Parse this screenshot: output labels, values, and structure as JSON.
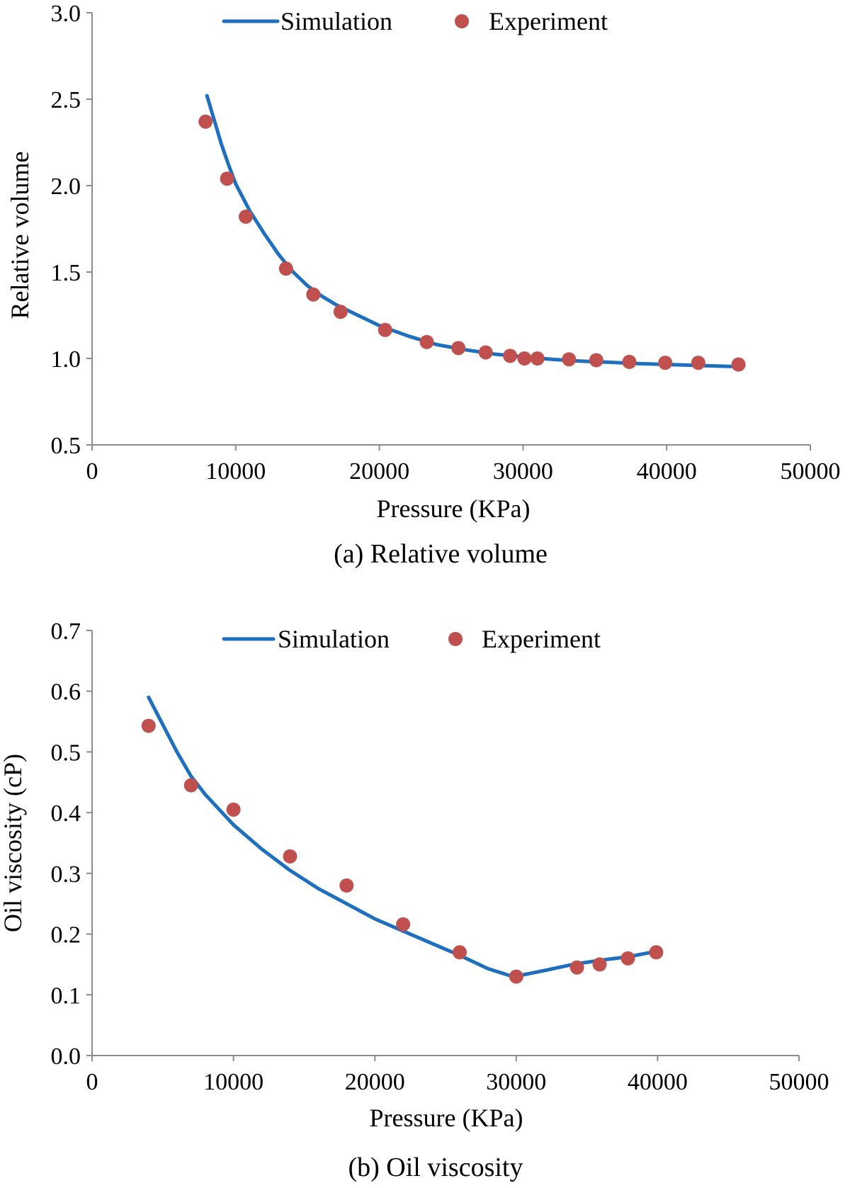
{
  "colors": {
    "simulation": "#1f6fbf",
    "experiment": "#c0504d"
  },
  "chart_data": [
    {
      "type": "line",
      "caption": "(a) Relative volume",
      "xlabel": "Pressure (KPa)",
      "ylabel": "Relative volume",
      "xlim": [
        0,
        50000
      ],
      "ylim": [
        0.5,
        3.0
      ],
      "xticks": [
        0,
        10000,
        20000,
        30000,
        40000,
        50000
      ],
      "yticks": [
        0.5,
        1.0,
        1.5,
        2.0,
        2.5,
        3.0
      ],
      "ytick_decimals": 1,
      "grid": false,
      "legend_position": "top",
      "series": [
        {
          "name": "Simulation",
          "style": "line",
          "x": [
            8000,
            8500,
            9000,
            9500,
            10000,
            11000,
            12000,
            13000,
            14000,
            15000,
            16000,
            17000,
            18000,
            20000,
            22000,
            24000,
            26000,
            28000,
            30000,
            32000,
            34000,
            36000,
            38000,
            40000,
            42000,
            44000,
            45000
          ],
          "y": [
            2.52,
            2.38,
            2.24,
            2.12,
            2.01,
            1.85,
            1.72,
            1.6,
            1.5,
            1.42,
            1.36,
            1.31,
            1.27,
            1.19,
            1.13,
            1.08,
            1.05,
            1.025,
            1.01,
            0.995,
            0.985,
            0.978,
            0.97,
            0.965,
            0.96,
            0.955,
            0.952
          ]
        },
        {
          "name": "Experiment",
          "style": "scatter",
          "x": [
            7900,
            9400,
            10700,
            13500,
            15400,
            17300,
            20400,
            23300,
            25500,
            27400,
            29100,
            30100,
            31000,
            33200,
            35100,
            37400,
            39900,
            42200,
            45000
          ],
          "y": [
            2.37,
            2.04,
            1.82,
            1.52,
            1.37,
            1.27,
            1.165,
            1.095,
            1.06,
            1.035,
            1.015,
            1.0,
            1.0,
            0.995,
            0.99,
            0.98,
            0.975,
            0.975,
            0.965
          ]
        }
      ]
    },
    {
      "type": "line",
      "caption": "(b) Oil viscosity",
      "xlabel": "Pressure (KPa)",
      "ylabel": "Oil viscosity (cP)",
      "xlim": [
        0,
        50000
      ],
      "ylim": [
        0.0,
        0.7
      ],
      "xticks": [
        0,
        10000,
        20000,
        30000,
        40000,
        50000
      ],
      "yticks": [
        0.0,
        0.1,
        0.2,
        0.3,
        0.4,
        0.5,
        0.6,
        0.7
      ],
      "ytick_decimals": 1,
      "grid": false,
      "legend_position": "top",
      "series": [
        {
          "name": "Simulation",
          "style": "line",
          "x": [
            4000,
            5000,
            6000,
            7000,
            8000,
            10000,
            12000,
            14000,
            16000,
            18000,
            20000,
            22000,
            24000,
            26000,
            28000,
            29500,
            30500,
            32000,
            34000,
            36000,
            38000,
            40000
          ],
          "y": [
            0.59,
            0.545,
            0.5,
            0.46,
            0.43,
            0.38,
            0.34,
            0.305,
            0.275,
            0.25,
            0.225,
            0.205,
            0.185,
            0.165,
            0.143,
            0.132,
            0.133,
            0.14,
            0.15,
            0.157,
            0.163,
            0.172
          ]
        },
        {
          "name": "Experiment",
          "style": "scatter",
          "x": [
            4000,
            7000,
            10000,
            14000,
            18000,
            22000,
            26000,
            30000,
            34300,
            35900,
            37900,
            39900
          ],
          "y": [
            0.543,
            0.445,
            0.405,
            0.328,
            0.28,
            0.216,
            0.17,
            0.13,
            0.145,
            0.15,
            0.16,
            0.17
          ]
        }
      ]
    }
  ]
}
